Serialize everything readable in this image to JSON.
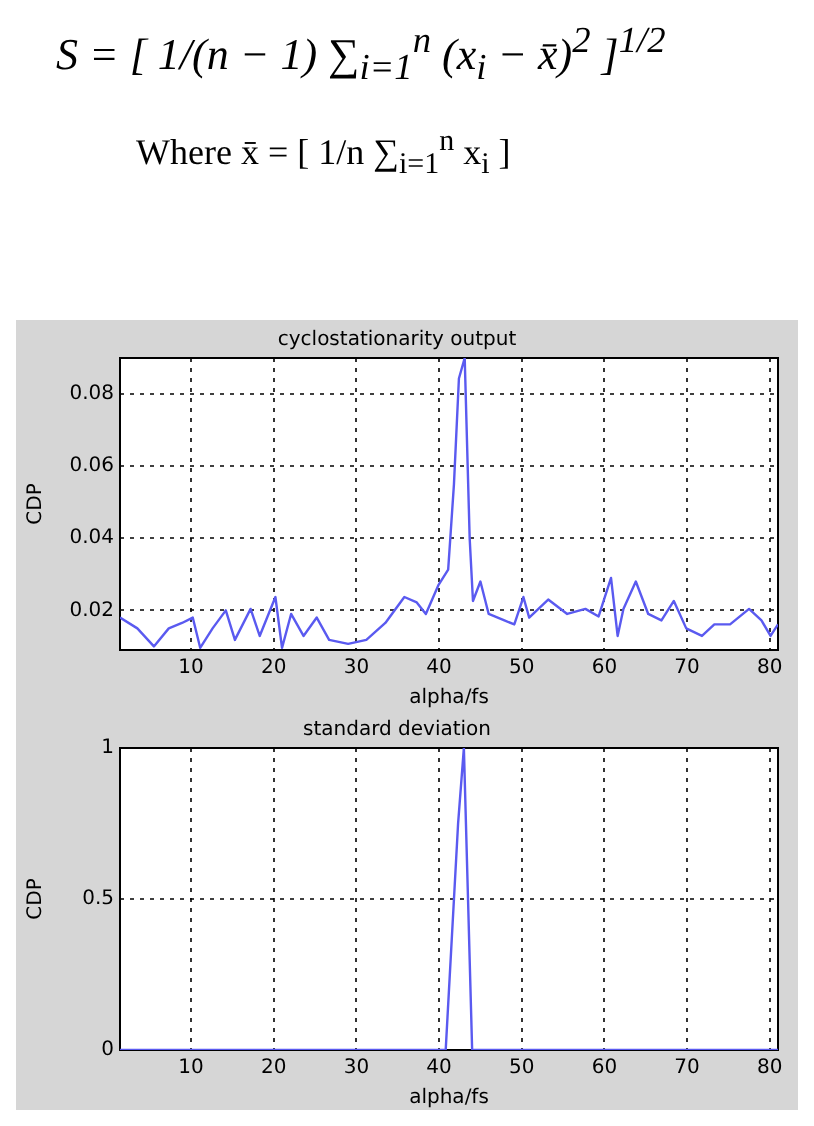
{
  "chart_data": [
    {
      "type": "line",
      "title": "cyclostationarity output",
      "xlabel": "alpha/fs",
      "ylabel": "CDP",
      "annotations": [
        "S = [ 1/(n − 1) ∑$_{i=1}$$^{n}$ (x$_{i}$ − x̄)$^{2}$ ]$^{1/2}$",
        "Where   x̄ = [ 1/n ∑$_{i=1}$$^{n}$ x$_{i}$ ]"
      ],
      "xlim": [
        1.4,
        81
      ],
      "xticks": [
        10,
        20,
        30,
        40,
        50,
        60,
        70,
        80
      ],
      "ylim": [
        0.009,
        0.09
      ],
      "yticks": [
        0.02,
        0.04,
        0.06,
        0.08
      ],
      "grid": true,
      "marker": "none",
      "line_style": "solid",
      "series": [
        {
          "color": "#5a5af0",
          "x": [
            1.4,
            3.5,
            5.5,
            7.3,
            8.9,
            10.2,
            11.1,
            12.6,
            14.2,
            15.3,
            17.2,
            18.3,
            20.2,
            21,
            22.1,
            23.6,
            25.2,
            26.7,
            29,
            31.2,
            33.5,
            35.8,
            37.3,
            38.4,
            39.9,
            41.1,
            41.8,
            42.4,
            43.1,
            43.7,
            44.1,
            45,
            46,
            47.9,
            49.1,
            50.2,
            50.9,
            53.2,
            55.5,
            57.7,
            59.3,
            60.8,
            61.6,
            62.3,
            63.8,
            65.3,
            66.9,
            68.4,
            69.9,
            71.8,
            73.3,
            75.2,
            77.5,
            79,
            80.1,
            81
          ],
          "values": [
            0.018,
            0.015,
            0.01,
            0.015,
            0.0165,
            0.018,
            0.0096,
            0.015,
            0.02,
            0.0118,
            0.0204,
            0.0129,
            0.0237,
            0.0096,
            0.019,
            0.0129,
            0.018,
            0.0118,
            0.0107,
            0.0118,
            0.0165,
            0.0237,
            0.0222,
            0.019,
            0.0269,
            0.0313,
            0.055,
            0.0843,
            0.09,
            0.04,
            0.0226,
            0.028,
            0.019,
            0.0172,
            0.0161,
            0.0237,
            0.018,
            0.023,
            0.019,
            0.0204,
            0.0183,
            0.029,
            0.0129,
            0.0204,
            0.028,
            0.019,
            0.0172,
            0.0226,
            0.015,
            0.0129,
            0.0161,
            0.0161,
            0.0204,
            0.0172,
            0.0129,
            0.0161
          ]
        }
      ]
    },
    {
      "type": "line",
      "title": "standard deviation",
      "xlabel": "alpha/fs",
      "ylabel": "CDP",
      "xlim": [
        1.4,
        81
      ],
      "xticks": [
        10,
        20,
        30,
        40,
        50,
        60,
        70,
        80
      ],
      "ylim": [
        0,
        1
      ],
      "yticks": [
        0,
        0.5,
        1
      ],
      "grid": true,
      "marker": "none",
      "line_style": "solid",
      "series": [
        {
          "color": "#5a5af0",
          "x": [
            1.4,
            40.8,
            41.8,
            42.3,
            43,
            43.5,
            44,
            81
          ],
          "values": [
            0,
            0,
            0.5,
            0.75,
            1,
            0.5,
            0,
            0
          ]
        }
      ]
    }
  ]
}
